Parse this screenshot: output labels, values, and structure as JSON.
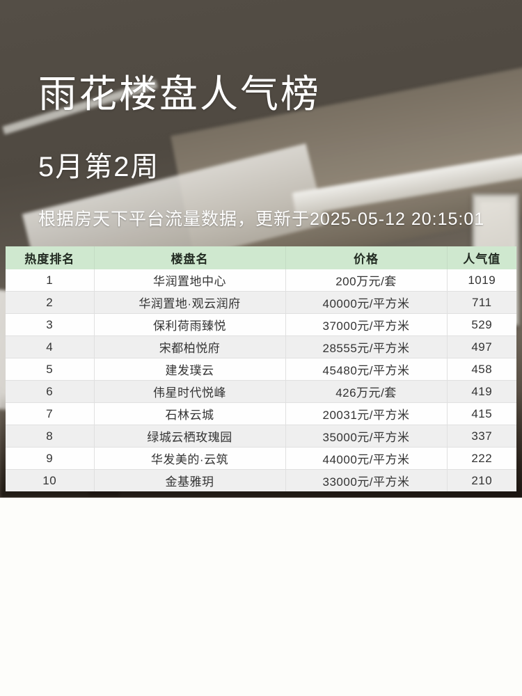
{
  "header": {
    "title": "雨花楼盘人气榜",
    "subtitle": "5月第2周",
    "update_note": "根据房天下平台流量数据，更新于2025-05-12 20:15:01"
  },
  "table": {
    "columns": [
      "热度排名",
      "楼盘名",
      "价格",
      "人气值"
    ],
    "rows": [
      {
        "rank": "1",
        "name": "华润置地中心",
        "price": "200万元/套",
        "popularity": "1019"
      },
      {
        "rank": "2",
        "name": "华润置地·观云润府",
        "price": "40000元/平方米",
        "popularity": "711"
      },
      {
        "rank": "3",
        "name": "保利荷雨臻悦",
        "price": "37000元/平方米",
        "popularity": "529"
      },
      {
        "rank": "4",
        "name": "宋都柏悦府",
        "price": "28555元/平方米",
        "popularity": "497"
      },
      {
        "rank": "5",
        "name": "建发璞云",
        "price": "45480元/平方米",
        "popularity": "458"
      },
      {
        "rank": "6",
        "name": "伟星时代悦峰",
        "price": "426万元/套",
        "popularity": "419"
      },
      {
        "rank": "7",
        "name": "石林云城",
        "price": "20031元/平方米",
        "popularity": "415"
      },
      {
        "rank": "8",
        "name": "绿城云栖玫瑰园",
        "price": "35000元/平方米",
        "popularity": "337"
      },
      {
        "rank": "9",
        "name": "华发美的·云筑",
        "price": "44000元/平方米",
        "popularity": "222"
      },
      {
        "rank": "10",
        "name": "金基雅玥",
        "price": "33000元/平方米",
        "popularity": "210"
      }
    ]
  },
  "colors": {
    "table_header_bg": "#cfe8cf",
    "row_bg": "#fefefe",
    "row_alt_bg": "#efefef",
    "cell_text": "#333333",
    "header_text": "#222b22",
    "hero_text": "#ffffff",
    "photo_dark": "#4f4941"
  },
  "chart_data": {
    "type": "table",
    "title": "雨花楼盘人气榜",
    "subtitle": "5月第2周",
    "note": "根据房天下平台流量数据，更新于2025-05-12 20:15:01",
    "columns": [
      "热度排名",
      "楼盘名",
      "价格",
      "人气值"
    ],
    "rows": [
      [
        1,
        "华润置地中心",
        "200万元/套",
        1019
      ],
      [
        2,
        "华润置地·观云润府",
        "40000元/平方米",
        711
      ],
      [
        3,
        "保利荷雨臻悦",
        "37000元/平方米",
        529
      ],
      [
        4,
        "宋都柏悦府",
        "28555元/平方米",
        497
      ],
      [
        5,
        "建发璞云",
        "45480元/平方米",
        458
      ],
      [
        6,
        "伟星时代悦峰",
        "426万元/套",
        419
      ],
      [
        7,
        "石林云城",
        "20031元/平方米",
        415
      ],
      [
        8,
        "绿城云栖玫瑰园",
        "35000元/平方米",
        337
      ],
      [
        9,
        "华发美的·云筑",
        "44000元/平方米",
        222
      ],
      [
        10,
        "金基雅玥",
        "33000元/平方米",
        210
      ]
    ]
  }
}
